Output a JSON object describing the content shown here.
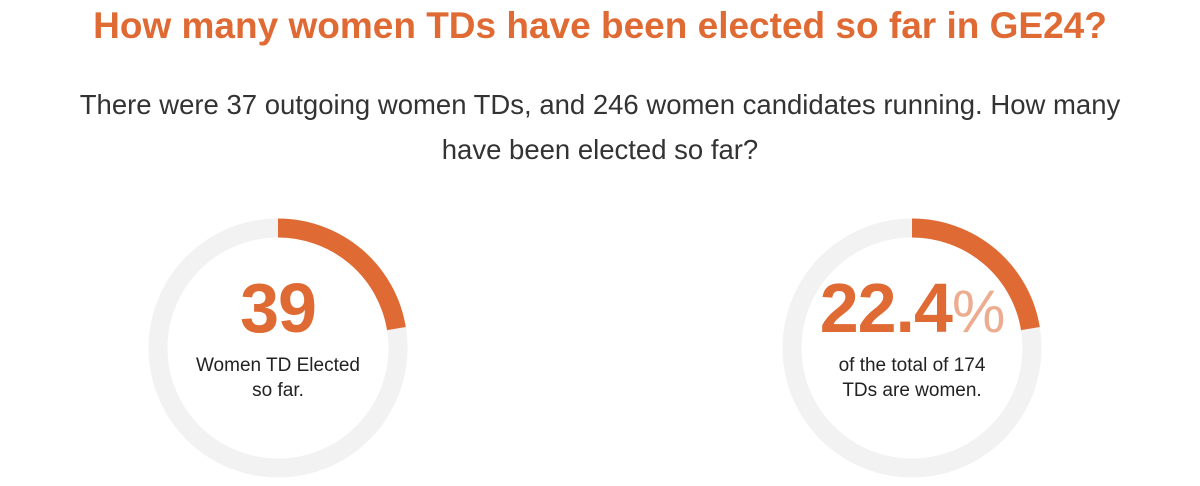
{
  "colors": {
    "accent": "#E06A34",
    "track": "#F2F2F2",
    "text": "#333333"
  },
  "header": {
    "title": "How many women TDs have been elected so far in GE24?",
    "subtitle_lines": [
      "There were 37 outgoing women TDs, and 246 women candidates running. How many",
      "have been elected so far?"
    ]
  },
  "gauges": [
    {
      "value": "39",
      "fill_fraction": 0.224,
      "caption_lines": [
        "Women TD Elected",
        "so far."
      ]
    },
    {
      "value_main": "22.4",
      "value_suffix": "%",
      "fill_fraction": 0.224,
      "caption_lines": [
        "of the total of 174",
        "TDs are women."
      ]
    }
  ]
}
